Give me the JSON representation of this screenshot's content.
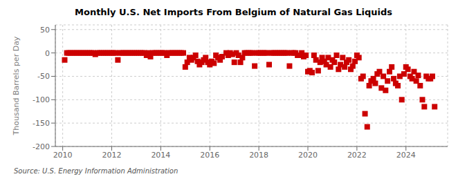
{
  "chart_data": {
    "type": "scatter",
    "title": "Monthly U.S. Net Imports From Belgium of Natural Gas Liquids",
    "ylabel": "Thousand Barrels per Day",
    "annotations": [
      "Source: U.S. Energy Information Administration"
    ],
    "color": "#cc0000",
    "marker": "square",
    "grid": true,
    "xlim": [
      2009.7,
      2025.7
    ],
    "xticks": [
      2010,
      2012,
      2014,
      2016,
      2018,
      2020,
      2022,
      2024
    ],
    "ylim": [
      -200,
      60
    ],
    "yticks": [
      -200,
      -150,
      -100,
      -50,
      0,
      50
    ],
    "x": [
      2010.08,
      2010.17,
      2010.25,
      2010.33,
      2010.42,
      2010.5,
      2010.58,
      2010.67,
      2010.75,
      2010.83,
      2010.92,
      2011,
      2011.08,
      2011.17,
      2011.25,
      2011.33,
      2011.42,
      2011.5,
      2011.58,
      2011.67,
      2011.75,
      2011.83,
      2011.92,
      2012,
      2012.08,
      2012.17,
      2012.25,
      2012.33,
      2012.42,
      2012.5,
      2012.58,
      2012.67,
      2012.75,
      2012.83,
      2012.92,
      2013,
      2013.08,
      2013.17,
      2013.25,
      2013.33,
      2013.42,
      2013.5,
      2013.58,
      2013.67,
      2013.75,
      2013.83,
      2013.92,
      2014,
      2014.08,
      2014.17,
      2014.25,
      2014.33,
      2014.42,
      2014.5,
      2014.58,
      2014.67,
      2014.75,
      2014.83,
      2014.92,
      2015,
      2015.08,
      2015.17,
      2015.25,
      2015.33,
      2015.42,
      2015.5,
      2015.58,
      2015.67,
      2015.75,
      2015.83,
      2015.92,
      2016,
      2016.08,
      2016.17,
      2016.25,
      2016.33,
      2016.42,
      2016.5,
      2016.67,
      2016.75,
      2016.83,
      2016.92,
      2017,
      2017.08,
      2017.17,
      2017.25,
      2017.33,
      2017.42,
      2017.5,
      2017.58,
      2017.67,
      2017.75,
      2017.83,
      2017.92,
      2018,
      2018.08,
      2018.17,
      2018.25,
      2018.33,
      2018.42,
      2018.5,
      2018.58,
      2018.67,
      2018.75,
      2018.83,
      2018.92,
      2019,
      2019.08,
      2019.17,
      2019.25,
      2019.33,
      2019.42,
      2019.5,
      2019.58,
      2019.67,
      2019.75,
      2019.83,
      2019.92,
      2020,
      2020.08,
      2020.17,
      2020.25,
      2020.33,
      2020.42,
      2020.5,
      2020.58,
      2020.67,
      2020.75,
      2020.83,
      2020.92,
      2021,
      2021.08,
      2021.17,
      2021.25,
      2021.33,
      2021.42,
      2021.5,
      2021.58,
      2021.67,
      2021.75,
      2021.83,
      2021.92,
      2022,
      2022.08,
      2022.17,
      2022.25,
      2022.33,
      2022.42,
      2022.5,
      2022.58,
      2022.67,
      2022.75,
      2022.83,
      2022.92,
      2023,
      2023.08,
      2023.17,
      2023.25,
      2023.33,
      2023.42,
      2023.5,
      2023.58,
      2023.67,
      2023.75,
      2023.83,
      2023.92,
      2024,
      2024.08,
      2024.17,
      2024.25,
      2024.33,
      2024.42,
      2024.5,
      2024.58,
      2024.67,
      2024.75,
      2024.83,
      2024.92,
      2025,
      2025.08,
      2025.17
    ],
    "values": [
      -15,
      0,
      0,
      0,
      0,
      0,
      0,
      0,
      0,
      0,
      0,
      0,
      0,
      0,
      0,
      -3,
      0,
      0,
      0,
      0,
      0,
      0,
      0,
      0,
      0,
      0,
      -15,
      0,
      0,
      0,
      0,
      0,
      0,
      0,
      0,
      0,
      0,
      0,
      0,
      0,
      -5,
      0,
      -8,
      0,
      0,
      0,
      0,
      0,
      0,
      0,
      -5,
      0,
      0,
      0,
      0,
      0,
      0,
      0,
      0,
      -30,
      -20,
      -10,
      -15,
      -10,
      -5,
      -18,
      -25,
      -20,
      -15,
      -10,
      -20,
      -25,
      -18,
      -22,
      -5,
      -10,
      -15,
      -8,
      0,
      -5,
      0,
      -3,
      -20,
      0,
      -5,
      -20,
      -10,
      0,
      0,
      0,
      0,
      0,
      -28,
      0,
      0,
      0,
      0,
      0,
      0,
      -25,
      0,
      0,
      0,
      0,
      0,
      0,
      0,
      0,
      0,
      -28,
      0,
      0,
      0,
      -5,
      -5,
      0,
      -8,
      -5,
      -40,
      -38,
      -42,
      -5,
      -15,
      -38,
      -20,
      -10,
      -18,
      -25,
      -10,
      -30,
      -15,
      -20,
      -5,
      -35,
      -25,
      -10,
      -30,
      -20,
      -15,
      -35,
      -28,
      -18,
      -5,
      -10,
      -55,
      -50,
      -130,
      -158,
      -70,
      -60,
      -55,
      -65,
      -45,
      -40,
      -75,
      -50,
      -80,
      -60,
      -40,
      -30,
      -55,
      -65,
      -70,
      -50,
      -100,
      -45,
      -30,
      -35,
      -50,
      -55,
      -40,
      -60,
      -48,
      -70,
      -100,
      -115,
      -50,
      -55,
      -55,
      -50,
      -115
    ]
  }
}
